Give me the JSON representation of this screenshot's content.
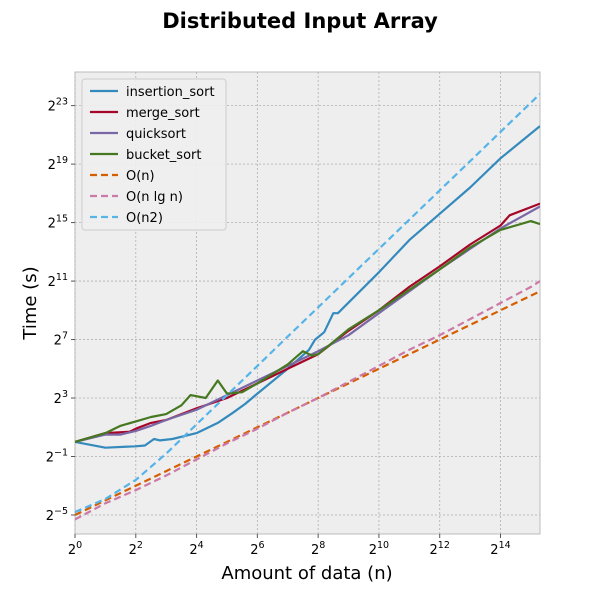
{
  "chart_data": {
    "type": "line",
    "title": "Distributed Input Array",
    "xlabel": "Amount of data (n)",
    "ylabel": "Time (s)",
    "x_scale": "log2",
    "y_scale": "log2",
    "xlim_log2": [
      0,
      15.3
    ],
    "ylim_log2": [
      -6.3,
      25.3
    ],
    "x_ticks": [
      {
        "base": "2",
        "exp": "0",
        "log2": 0
      },
      {
        "base": "2",
        "exp": "2",
        "log2": 2
      },
      {
        "base": "2",
        "exp": "4",
        "log2": 4
      },
      {
        "base": "2",
        "exp": "6",
        "log2": 6
      },
      {
        "base": "2",
        "exp": "8",
        "log2": 8
      },
      {
        "base": "2",
        "exp": "10",
        "log2": 10
      },
      {
        "base": "2",
        "exp": "12",
        "log2": 12
      },
      {
        "base": "2",
        "exp": "14",
        "log2": 14
      }
    ],
    "y_ticks": [
      {
        "base": "2",
        "exp": "−5",
        "log2": -5
      },
      {
        "base": "2",
        "exp": "−1",
        "log2": -1
      },
      {
        "base": "2",
        "exp": "3",
        "log2": 3
      },
      {
        "base": "2",
        "exp": "7",
        "log2": 7
      },
      {
        "base": "2",
        "exp": "11",
        "log2": 11
      },
      {
        "base": "2",
        "exp": "15",
        "log2": 15
      },
      {
        "base": "2",
        "exp": "19",
        "log2": 19
      },
      {
        "base": "2",
        "exp": "23",
        "log2": 23
      }
    ],
    "grid": true,
    "legend_position": "upper-left",
    "series": [
      {
        "name": "insertion_sort",
        "color": "#348abd",
        "dash": "solid",
        "points_log2": [
          [
            0,
            0
          ],
          [
            1,
            -0.4
          ],
          [
            2,
            -0.3
          ],
          [
            2.3,
            -0.25
          ],
          [
            2.6,
            0.2
          ],
          [
            2.8,
            0.1
          ],
          [
            3.2,
            0.2
          ],
          [
            4,
            0.6
          ],
          [
            4.7,
            1.3
          ],
          [
            5.2,
            2
          ],
          [
            5.6,
            2.6
          ],
          [
            6,
            3.3
          ],
          [
            7,
            5
          ],
          [
            7.7,
            6.3
          ],
          [
            7.9,
            7
          ],
          [
            8.2,
            7.5
          ],
          [
            8.5,
            8.8
          ],
          [
            8.65,
            8.8
          ],
          [
            10,
            11.6
          ],
          [
            11,
            13.8
          ],
          [
            12,
            15.6
          ],
          [
            13,
            17.4
          ],
          [
            14,
            19.4
          ],
          [
            15.3,
            21.6
          ]
        ]
      },
      {
        "name": "merge_sort",
        "color": "#a60628",
        "dash": "solid",
        "points_log2": [
          [
            0,
            0
          ],
          [
            1,
            0.6
          ],
          [
            1.8,
            0.7
          ],
          [
            2,
            0.9
          ],
          [
            2.5,
            1.3
          ],
          [
            3,
            1.5
          ],
          [
            4,
            2.3
          ],
          [
            5,
            3
          ],
          [
            6,
            4
          ],
          [
            7,
            5
          ],
          [
            8,
            6
          ],
          [
            9,
            7.6
          ],
          [
            10,
            9
          ],
          [
            11,
            10.6
          ],
          [
            12,
            12
          ],
          [
            13,
            13.5
          ],
          [
            14,
            14.8
          ],
          [
            14.3,
            15.5
          ],
          [
            15.3,
            16.3
          ]
        ]
      },
      {
        "name": "quicksort",
        "color": "#7a68a6",
        "dash": "solid",
        "points_log2": [
          [
            0,
            0
          ],
          [
            1,
            0.5
          ],
          [
            1.5,
            0.5
          ],
          [
            2,
            0.75
          ],
          [
            2.5,
            1.1
          ],
          [
            3,
            1.5
          ],
          [
            4,
            2.2
          ],
          [
            5,
            3.2
          ],
          [
            6,
            4.2
          ],
          [
            7,
            5.2
          ],
          [
            8,
            6.2
          ],
          [
            9,
            7.3
          ],
          [
            10,
            8.8
          ],
          [
            11,
            10.3
          ],
          [
            12,
            11.8
          ],
          [
            13,
            13.2
          ],
          [
            14,
            14.6
          ],
          [
            15.3,
            16.1
          ]
        ]
      },
      {
        "name": "bucket_sort",
        "color": "#467821",
        "dash": "solid",
        "points_log2": [
          [
            0,
            0
          ],
          [
            1,
            0.6
          ],
          [
            1.5,
            1.1
          ],
          [
            2,
            1.4
          ],
          [
            2.5,
            1.7
          ],
          [
            3,
            1.9
          ],
          [
            3.5,
            2.5
          ],
          [
            3.8,
            3.2
          ],
          [
            4.3,
            3
          ],
          [
            4.7,
            4.2
          ],
          [
            5,
            3.3
          ],
          [
            5.5,
            3.4
          ],
          [
            6,
            4
          ],
          [
            7,
            5.3
          ],
          [
            7.5,
            6.2
          ],
          [
            7.8,
            5.9
          ],
          [
            8,
            6
          ],
          [
            8.3,
            6.5
          ],
          [
            9,
            7.7
          ],
          [
            10,
            9
          ],
          [
            11,
            10.4
          ],
          [
            12,
            11.8
          ],
          [
            13,
            13.3
          ],
          [
            14,
            14.5
          ],
          [
            15,
            15.1
          ],
          [
            15.3,
            14.9
          ]
        ]
      },
      {
        "name": "O(n)",
        "color": "#d55e00",
        "dash": "dashed",
        "points_log2": [
          [
            0,
            -5.0
          ],
          [
            15.3,
            10.3
          ]
        ]
      },
      {
        "name": "O(n lg n)",
        "color": "#cc79a7",
        "dash": "dashed",
        "points_log2": [
          [
            0,
            -5.3
          ],
          [
            1,
            -4.2
          ],
          [
            2,
            -3.3
          ],
          [
            3,
            -2.3
          ],
          [
            4,
            -1.2
          ],
          [
            5,
            -0.1
          ],
          [
            6,
            0.9
          ],
          [
            7,
            2
          ],
          [
            8,
            3
          ],
          [
            9,
            4.1
          ],
          [
            10,
            5.2
          ],
          [
            11,
            6.3
          ],
          [
            12,
            7.3
          ],
          [
            13,
            8.4
          ],
          [
            14,
            9.5
          ],
          [
            15,
            10.6
          ],
          [
            15.3,
            11
          ]
        ]
      },
      {
        "name": "O(n2)",
        "color": "#56b4e9",
        "dash": "dashed",
        "points_log2": [
          [
            0,
            -4.8
          ],
          [
            1,
            -3.9
          ],
          [
            2,
            -2.6
          ],
          [
            3,
            -0.8
          ],
          [
            4,
            1.2
          ],
          [
            5,
            3.2
          ],
          [
            6,
            5.2
          ],
          [
            7,
            7.2
          ],
          [
            8,
            9.2
          ],
          [
            9,
            11.2
          ],
          [
            10,
            13.2
          ],
          [
            11,
            15.2
          ],
          [
            12,
            17.2
          ],
          [
            13,
            19.2
          ],
          [
            14,
            21.2
          ],
          [
            15.3,
            23.8
          ]
        ]
      }
    ]
  }
}
